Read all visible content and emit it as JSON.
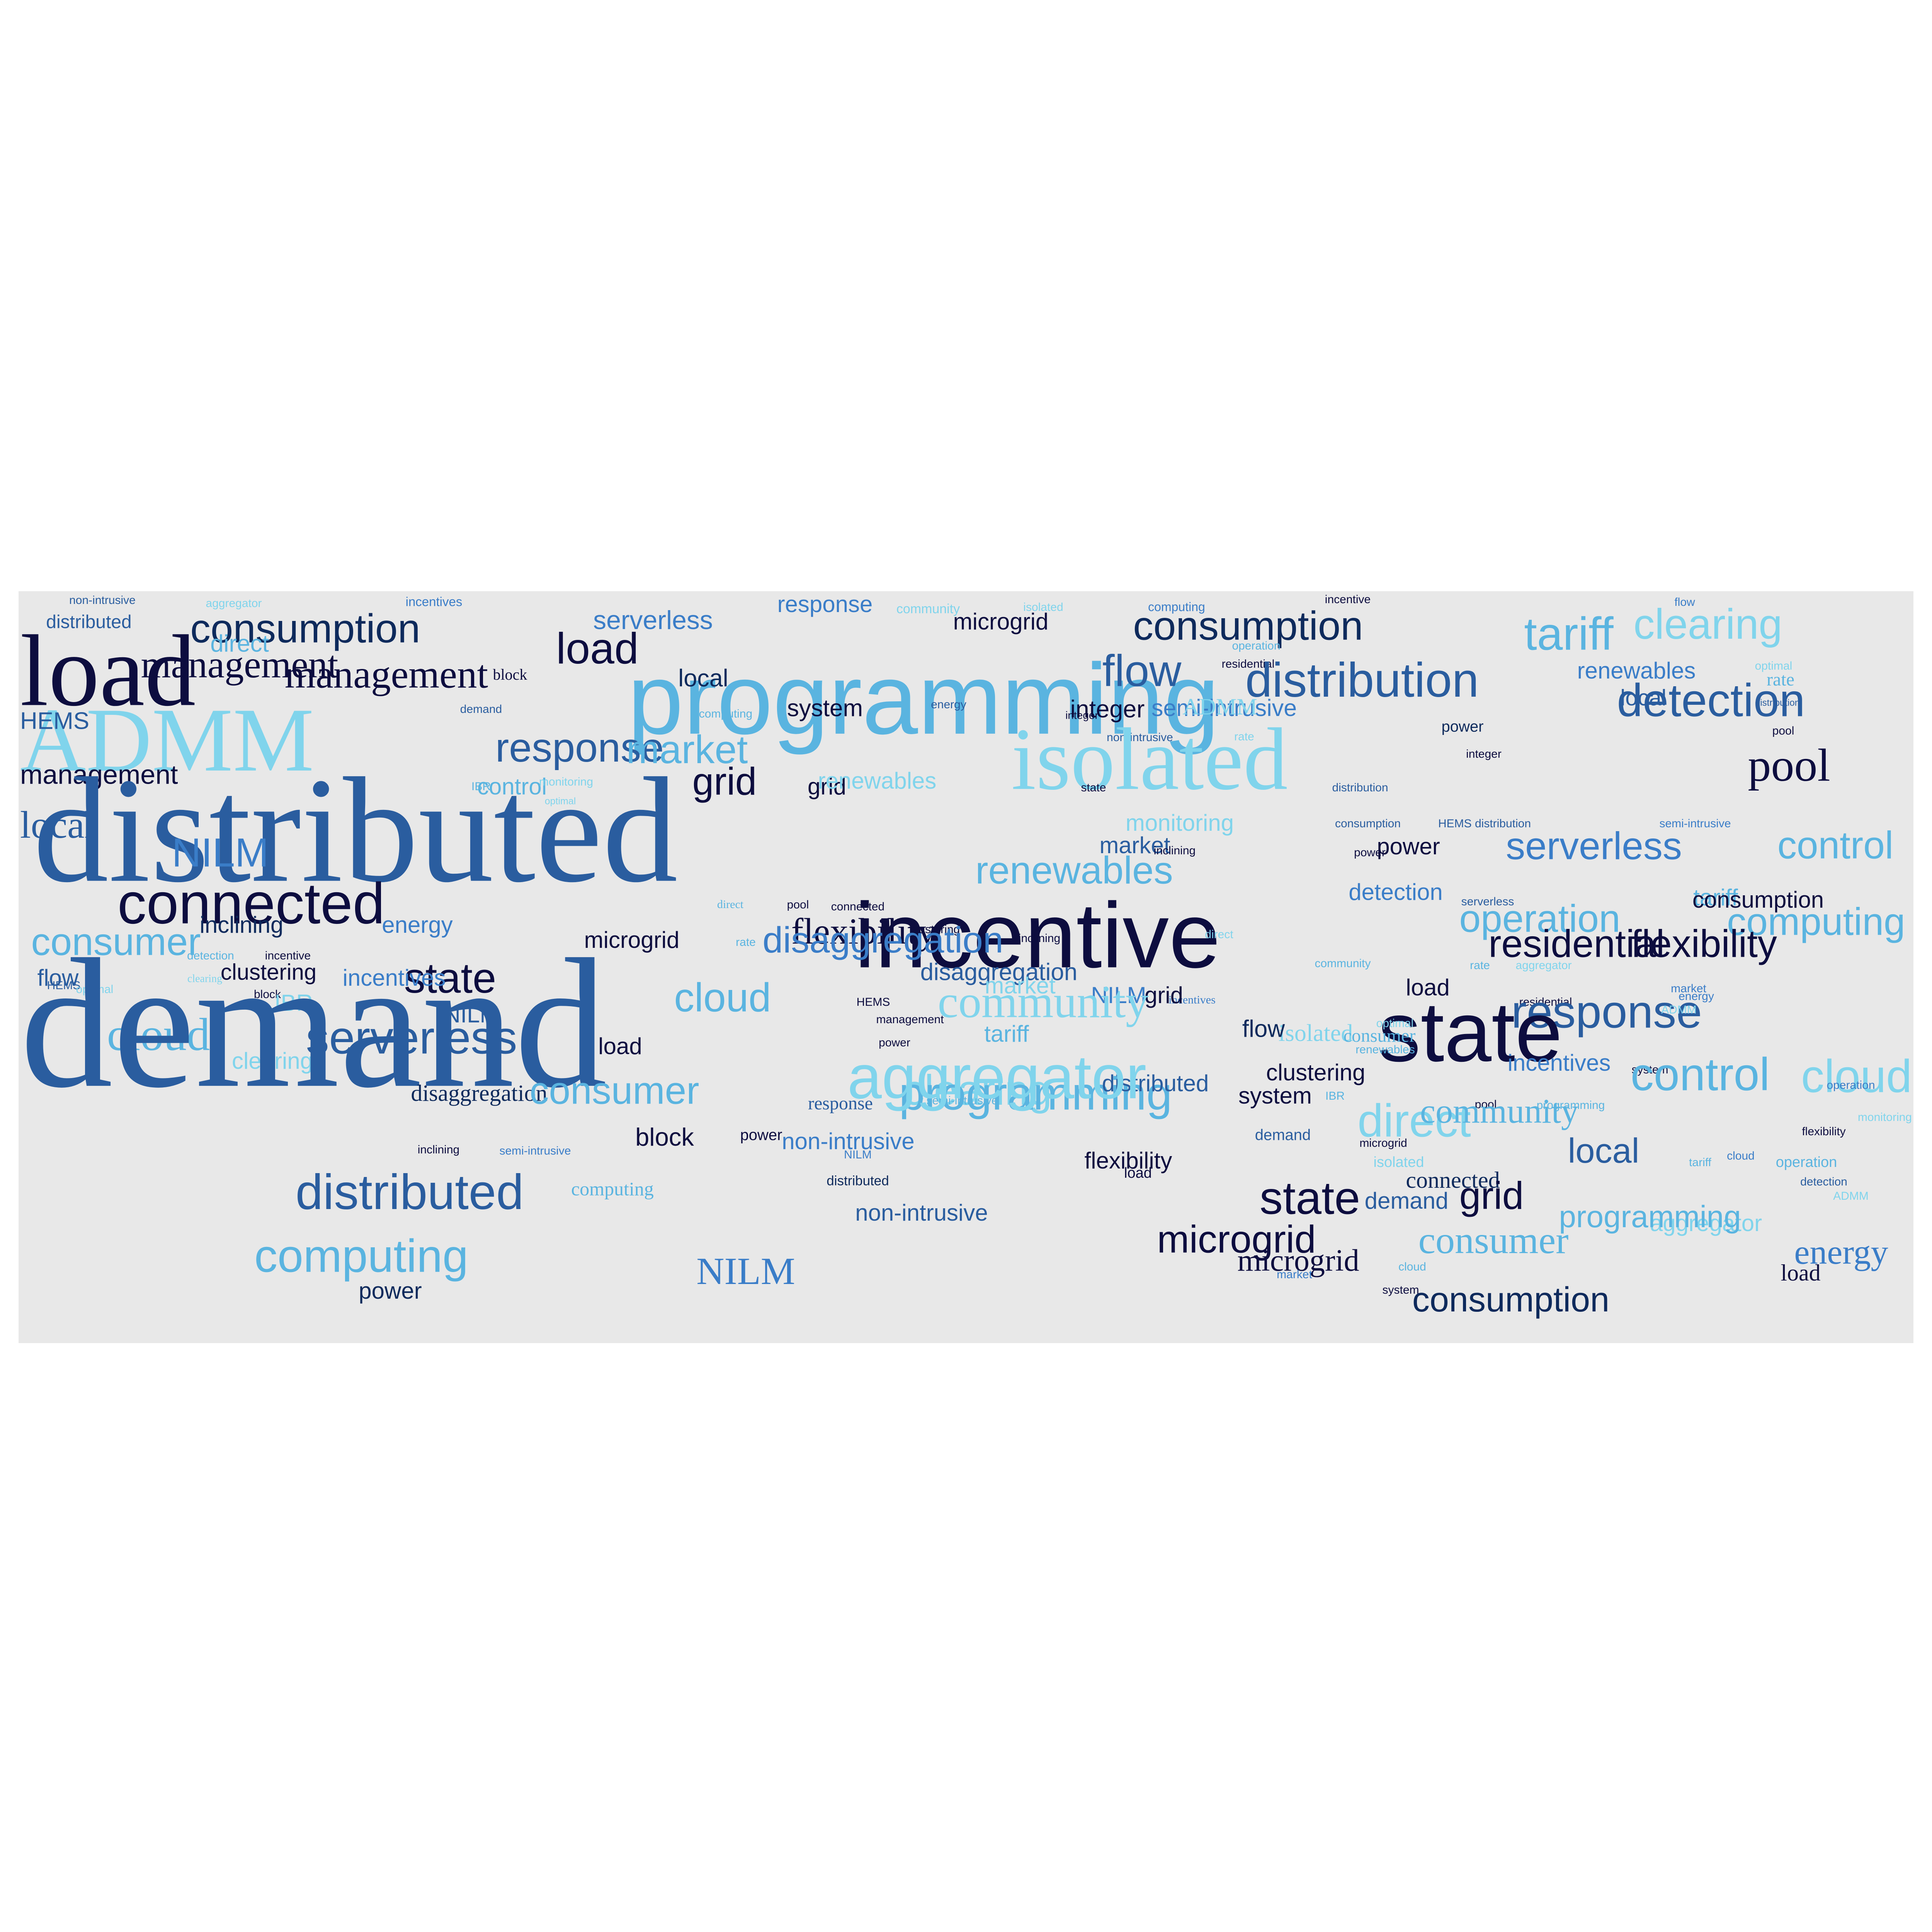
{
  "palette": {
    "background": "#ffffff",
    "panel": "#e8e8e8",
    "darkest": "#0d0d3f",
    "navy": "#0e2a5c",
    "blue": "#2a5d9f",
    "mid": "#3a7dc8",
    "light": "#5ab4e0",
    "pale": "#80d4ec"
  },
  "words": [
    {
      "text": "non-intrusive",
      "color": "blue"
    },
    {
      "text": "aggregator",
      "color": "pale"
    },
    {
      "text": "incentives",
      "color": "mid"
    },
    {
      "text": "response",
      "color": "mid"
    },
    {
      "text": "community",
      "color": "pale"
    },
    {
      "text": "isolated",
      "color": "pale"
    },
    {
      "text": "computing",
      "color": "mid"
    },
    {
      "text": "incentive",
      "color": "darkest"
    },
    {
      "text": "flow",
      "color": "mid"
    },
    {
      "text": "distributed",
      "color": "blue"
    },
    {
      "text": "consumption",
      "color": "navy"
    },
    {
      "text": "serverless",
      "color": "mid"
    },
    {
      "text": "microgrid",
      "color": "darkest"
    },
    {
      "text": "consumption",
      "color": "navy"
    },
    {
      "text": "clearing",
      "color": "pale"
    },
    {
      "text": "load",
      "color": "darkest"
    },
    {
      "text": "direct",
      "color": "light"
    },
    {
      "text": "management",
      "color": "darkest"
    },
    {
      "text": "load",
      "color": "darkest"
    },
    {
      "text": "programming",
      "color": "light"
    },
    {
      "text": "flow",
      "color": "blue"
    },
    {
      "text": "tariff",
      "color": "light"
    },
    {
      "text": "local",
      "color": "navy"
    },
    {
      "text": "renewables",
      "color": "mid"
    },
    {
      "text": "operation",
      "color": "light"
    },
    {
      "text": "management",
      "color": "darkest"
    },
    {
      "text": "residential",
      "color": "darkest"
    },
    {
      "text": "optimal",
      "color": "pale"
    },
    {
      "text": "block",
      "color": "darkest"
    },
    {
      "text": "distribution",
      "color": "blue"
    },
    {
      "text": "rate",
      "color": "light"
    },
    {
      "text": "demand",
      "color": "blue"
    },
    {
      "text": "computing",
      "color": "light"
    },
    {
      "text": "system",
      "color": "darkest"
    },
    {
      "text": "integer",
      "color": "darkest"
    },
    {
      "text": "ADMM",
      "color": "pale"
    },
    {
      "text": "semi-intrusive",
      "color": "mid"
    },
    {
      "text": "local",
      "color": "blue"
    },
    {
      "text": "detection",
      "color": "blue"
    },
    {
      "text": "HEMS",
      "color": "blue"
    },
    {
      "text": "ADMM",
      "color": "pale"
    },
    {
      "text": "integer",
      "color": "darkest"
    },
    {
      "text": "energy",
      "color": "blue"
    },
    {
      "text": "distribution",
      "color": "blue"
    },
    {
      "text": "response",
      "color": "blue"
    },
    {
      "text": "market",
      "color": "light"
    },
    {
      "text": "non-intrusive",
      "color": "blue"
    },
    {
      "text": "rate",
      "color": "pale"
    },
    {
      "text": "power",
      "color": "navy"
    },
    {
      "text": "pool",
      "color": "darkest"
    },
    {
      "text": "isolated",
      "color": "pale"
    },
    {
      "text": "control",
      "color": "light"
    },
    {
      "text": "monitoring",
      "color": "pale"
    },
    {
      "text": "grid",
      "color": "darkest"
    },
    {
      "text": "grid",
      "color": "darkest"
    },
    {
      "text": "renewables",
      "color": "pale"
    },
    {
      "text": "integer",
      "color": "darkest"
    },
    {
      "text": "pool",
      "color": "darkest"
    },
    {
      "text": "management",
      "color": "darkest"
    },
    {
      "text": "IBR",
      "color": "light"
    },
    {
      "text": "optimal",
      "color": "pale"
    },
    {
      "text": "state",
      "color": "darkest"
    },
    {
      "text": "distribution",
      "color": "blue"
    },
    {
      "text": "distributed",
      "color": "blue"
    },
    {
      "text": "local",
      "color": "blue"
    },
    {
      "text": "NILM",
      "color": "mid"
    },
    {
      "text": "market",
      "color": "blue"
    },
    {
      "text": "monitoring",
      "color": "pale"
    },
    {
      "text": "consumption",
      "color": "blue"
    },
    {
      "text": "HEMS distribution",
      "color": "blue"
    },
    {
      "text": "semi-intrusive",
      "color": "mid"
    },
    {
      "text": "inclining",
      "color": "darkest"
    },
    {
      "text": "power",
      "color": "darkest"
    },
    {
      "text": "serverless",
      "color": "mid"
    },
    {
      "text": "control",
      "color": "light"
    },
    {
      "text": "power",
      "color": "darkest"
    },
    {
      "text": "renewables",
      "color": "light"
    },
    {
      "text": "detection",
      "color": "mid"
    },
    {
      "text": "tariff",
      "color": "light"
    },
    {
      "text": "connected",
      "color": "darkest"
    },
    {
      "text": "serverless",
      "color": "blue"
    },
    {
      "text": "consumption",
      "color": "darkest"
    },
    {
      "text": "connected",
      "color": "darkest"
    },
    {
      "text": "direct",
      "color": "light"
    },
    {
      "text": "pool",
      "color": "darkest"
    },
    {
      "text": "incentive",
      "color": "darkest"
    },
    {
      "text": "operation",
      "color": "light"
    },
    {
      "text": "computing",
      "color": "light"
    },
    {
      "text": "inclining",
      "color": "navy"
    },
    {
      "text": "energy",
      "color": "mid"
    },
    {
      "text": "flexibility",
      "color": "darkest"
    },
    {
      "text": "clustering",
      "color": "darkest"
    },
    {
      "text": "direct",
      "color": "pale"
    },
    {
      "text": "disaggregation",
      "color": "mid"
    },
    {
      "text": "consumer",
      "color": "light"
    },
    {
      "text": "microgrid",
      "color": "darkest"
    },
    {
      "text": "rate",
      "color": "light"
    },
    {
      "text": "inclining",
      "color": "darkest"
    },
    {
      "text": "residential",
      "color": "darkest"
    },
    {
      "text": "flexibility",
      "color": "darkest"
    },
    {
      "text": "detection",
      "color": "light"
    },
    {
      "text": "incentive",
      "color": "darkest"
    },
    {
      "text": "clustering",
      "color": "darkest"
    },
    {
      "text": "state",
      "color": "darkest"
    },
    {
      "text": "disaggregation",
      "color": "blue"
    },
    {
      "text": "community",
      "color": "light"
    },
    {
      "text": "rate",
      "color": "light"
    },
    {
      "text": "aggregator",
      "color": "pale"
    },
    {
      "text": "flow",
      "color": "blue"
    },
    {
      "text": "incentives",
      "color": "mid"
    },
    {
      "text": "market",
      "color": "pale"
    },
    {
      "text": "load",
      "color": "darkest"
    },
    {
      "text": "HEMS",
      "color": "blue"
    },
    {
      "text": "optimal",
      "color": "pale"
    },
    {
      "text": "clearing",
      "color": "pale"
    },
    {
      "text": "block",
      "color": "darkest"
    },
    {
      "text": "incentives",
      "color": "mid"
    },
    {
      "text": "market",
      "color": "mid"
    },
    {
      "text": "NILM",
      "color": "mid"
    },
    {
      "text": "IBR",
      "color": "pale"
    },
    {
      "text": "grid",
      "color": "darkest"
    },
    {
      "text": "energy",
      "color": "mid"
    },
    {
      "text": "residential",
      "color": "darkest"
    },
    {
      "text": "cloud",
      "color": "light"
    },
    {
      "text": "cloud",
      "color": "light"
    },
    {
      "text": "community",
      "color": "pale"
    },
    {
      "text": "response",
      "color": "blue"
    },
    {
      "text": "state",
      "color": "darkest"
    },
    {
      "text": "isolated",
      "color": "pale"
    },
    {
      "text": "consumer",
      "color": "light"
    },
    {
      "text": "optimal",
      "color": "pale"
    },
    {
      "text": "ADMM",
      "color": "pale"
    },
    {
      "text": "management",
      "color": "darkest"
    },
    {
      "text": "renewables",
      "color": "light"
    },
    {
      "text": "HEMS",
      "color": "darkest"
    },
    {
      "text": "serverless",
      "color": "blue"
    },
    {
      "text": "load",
      "color": "darkest"
    },
    {
      "text": "power",
      "color": "darkest"
    },
    {
      "text": "tariff",
      "color": "light"
    },
    {
      "text": "clearing",
      "color": "pale"
    },
    {
      "text": "incentives",
      "color": "mid"
    },
    {
      "text": "system",
      "color": "darkest"
    },
    {
      "text": "demand",
      "color": "blue"
    },
    {
      "text": "NILM",
      "color": "blue"
    },
    {
      "text": "flow",
      "color": "navy"
    },
    {
      "text": "direct",
      "color": "pale"
    },
    {
      "text": "control",
      "color": "light"
    },
    {
      "text": "cloud",
      "color": "pale"
    },
    {
      "text": "disaggregation",
      "color": "navy"
    },
    {
      "text": "consumer",
      "color": "light"
    },
    {
      "text": "clearing",
      "color": "pale"
    },
    {
      "text": "IBR",
      "color": "light"
    },
    {
      "text": "response",
      "color": "blue"
    },
    {
      "text": "programming",
      "color": "light"
    },
    {
      "text": "system",
      "color": "darkest"
    },
    {
      "text": "pool",
      "color": "darkest"
    },
    {
      "text": "programming",
      "color": "light"
    },
    {
      "text": "clustering",
      "color": "darkest"
    },
    {
      "text": "distributed",
      "color": "blue"
    },
    {
      "text": "semi-intrusive",
      "color": "light"
    },
    {
      "text": "monitoring",
      "color": "pale"
    },
    {
      "text": "flexibility",
      "color": "darkest"
    },
    {
      "text": "aggregator",
      "color": "pale"
    },
    {
      "text": "operation",
      "color": "mid"
    },
    {
      "text": "community",
      "color": "light"
    },
    {
      "text": "local",
      "color": "blue"
    },
    {
      "text": "power",
      "color": "darkest"
    },
    {
      "text": "non-intrusive",
      "color": "mid"
    },
    {
      "text": "block",
      "color": "darkest"
    },
    {
      "text": "demand",
      "color": "blue"
    },
    {
      "text": "microgrid",
      "color": "darkest"
    },
    {
      "text": "cloud",
      "color": "mid"
    },
    {
      "text": "inclining",
      "color": "darkest"
    },
    {
      "text": "semi-intrusive",
      "color": "mid"
    },
    {
      "text": "isolated",
      "color": "pale"
    },
    {
      "text": "flexibility",
      "color": "darkest"
    },
    {
      "text": "load",
      "color": "darkest"
    },
    {
      "text": "operation",
      "color": "light"
    },
    {
      "text": "state",
      "color": "darkest"
    },
    {
      "text": "tariff",
      "color": "light"
    },
    {
      "text": "distributed",
      "color": "navy"
    },
    {
      "text": "NILM",
      "color": "mid"
    },
    {
      "text": "connected",
      "color": "navy"
    },
    {
      "text": "computing",
      "color": "light"
    },
    {
      "text": "demand",
      "color": "blue"
    },
    {
      "text": "grid",
      "color": "darkest"
    },
    {
      "text": "aggregator",
      "color": "pale"
    },
    {
      "text": "non-intrusive",
      "color": "blue"
    },
    {
      "text": "ADMM",
      "color": "pale"
    },
    {
      "text": "programming",
      "color": "light"
    },
    {
      "text": "microgrid",
      "color": "darkest"
    },
    {
      "text": "consumer",
      "color": "light"
    },
    {
      "text": "detection",
      "color": "blue"
    },
    {
      "text": "microgrid",
      "color": "darkest"
    },
    {
      "text": "energy",
      "color": "mid"
    },
    {
      "text": "cloud",
      "color": "light"
    },
    {
      "text": "load",
      "color": "darkest"
    },
    {
      "text": "NILM",
      "color": "mid"
    },
    {
      "text": "market",
      "color": "mid"
    },
    {
      "text": "system",
      "color": "darkest"
    },
    {
      "text": "distributed",
      "color": "blue"
    },
    {
      "text": "computing",
      "color": "light"
    },
    {
      "text": "power",
      "color": "navy"
    },
    {
      "text": "consumption",
      "color": "navy"
    }
  ]
}
